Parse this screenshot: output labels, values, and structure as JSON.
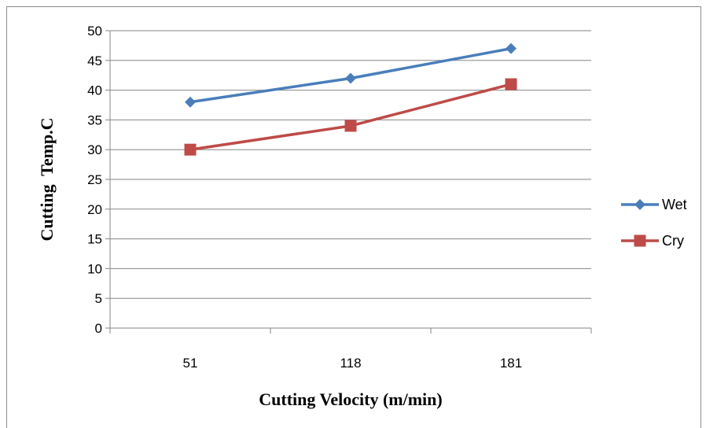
{
  "chart_data": {
    "type": "line",
    "categories": [
      "51",
      "118",
      "181"
    ],
    "series": [
      {
        "name": "Wet",
        "values": [
          38,
          42,
          47
        ],
        "color": "#4a7ebb",
        "marker": "diamond"
      },
      {
        "name": "Cry",
        "values": [
          30,
          34,
          41
        ],
        "color": "#be4b48",
        "marker": "square"
      }
    ],
    "xlabel": "Cutting Velocity (m/min)",
    "ylabel": "Cutting  Temp.C",
    "ylim": [
      0,
      50
    ],
    "yticks": [
      0,
      5,
      10,
      15,
      20,
      25,
      30,
      35,
      40,
      45,
      50
    ],
    "grid": "horizontal",
    "legend_position": "right"
  }
}
